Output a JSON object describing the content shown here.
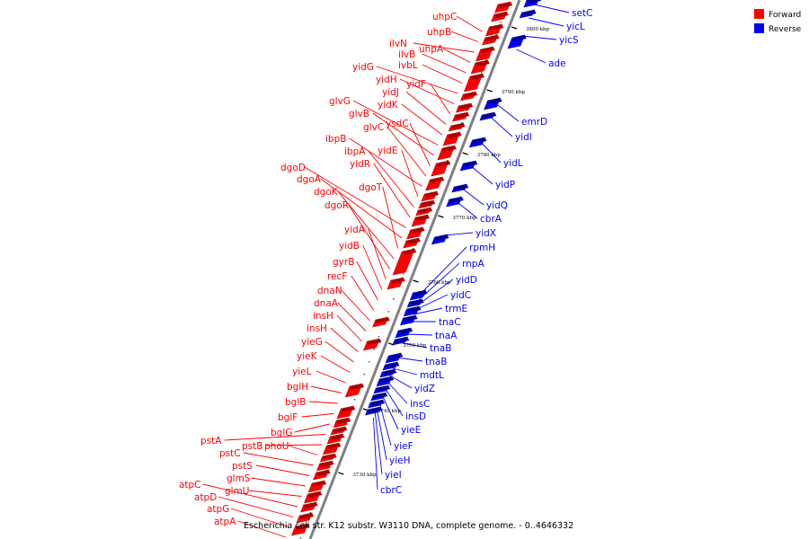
{
  "caption": "Escherichia coli str. K12 substr. W3110 DNA, complete genome. - 0..4646332",
  "legend": [
    {
      "label": "Forward",
      "color": "#ff0000"
    },
    {
      "label": "Reverse",
      "color": "#0000ff"
    }
  ],
  "colors": {
    "forward": "#ff0000",
    "forward_dark": "#b00000",
    "reverse": "#0000ff",
    "reverse_dark": "#00009a",
    "axis": "#808080"
  },
  "ticks": [
    "3800 kbp",
    "3790 kbp",
    "3780 kbp",
    "3770 kbp",
    "3760 kbp",
    "3750 kbp",
    "3740 kbp",
    "3730 kbp"
  ],
  "forward_genes": [
    "uhpC",
    "uhpB",
    "ilvN",
    "uhpA",
    "ilvB",
    "ivbL",
    "yidG",
    "yidH",
    "yidF",
    "yidJ",
    "yidK",
    "glvG",
    "glvB",
    "ysdC",
    "glvC",
    "ibpB",
    "yidE",
    "ibpA",
    "yidR",
    "dgoD",
    "dgoA",
    "dgoT",
    "dgoK",
    "dgoR",
    "yidA",
    "yidB",
    "gyrB",
    "recF",
    "dnaN",
    "dnaA",
    "insH",
    "insH",
    "yieG",
    "yieK",
    "yieL",
    "bglH",
    "bglB",
    "bglF",
    "bglG",
    "pstA",
    "pstB",
    "phoU",
    "pstC",
    "pstS",
    "glmS",
    "glmU",
    "atpC",
    "atpD",
    "atpG",
    "atpA"
  ],
  "reverse_genes": [
    "setC",
    "yicL",
    "yicS",
    "ade",
    "emrD",
    "yidI",
    "yidL",
    "yidP",
    "yidQ",
    "cbrA",
    "yidX",
    "rpmH",
    "rnpA",
    "yidD",
    "yidC",
    "trmE",
    "tnaC",
    "tnaA",
    "tnaB",
    "tnaB",
    "mdtL",
    "yidZ",
    "insC",
    "insD",
    "yieE",
    "yieF",
    "yieH",
    "yieI",
    "cbrC"
  ]
}
